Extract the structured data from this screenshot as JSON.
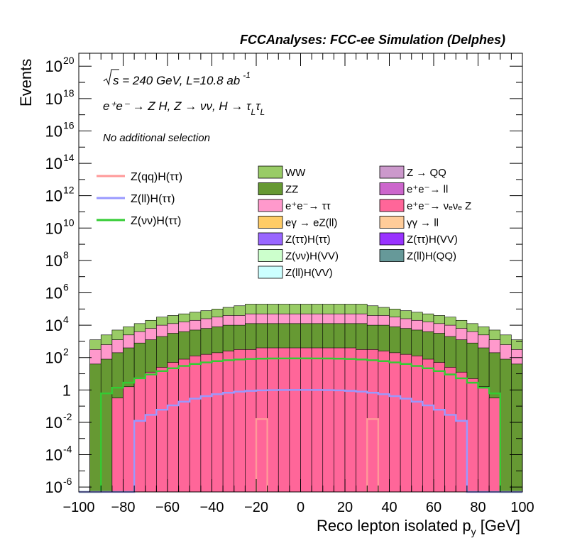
{
  "chart_data": {
    "type": "area",
    "title": "FCCAnalyses: FCC-ee Simulation (Delphes)",
    "xlabel": "Reco lepton isolated p_y [GeV]",
    "ylabel": "Events",
    "xlim": [
      -100,
      100
    ],
    "ylog": true,
    "ylim_exponents": [
      -6.3,
      20.8
    ],
    "x_ticks": [
      -100,
      -80,
      -60,
      -40,
      -20,
      0,
      20,
      40,
      60,
      80,
      100
    ],
    "y_ticks": [
      {
        "exp": -6,
        "label": "10",
        "sup": "-6"
      },
      {
        "exp": -4,
        "label": "10",
        "sup": "-4"
      },
      {
        "exp": -2,
        "label": "10",
        "sup": "-2"
      },
      {
        "exp": 0,
        "label": "1",
        "sup": ""
      },
      {
        "exp": 2,
        "label": "10",
        "sup": "2"
      },
      {
        "exp": 4,
        "label": "10",
        "sup": "4"
      },
      {
        "exp": 6,
        "label": "10",
        "sup": "6"
      },
      {
        "exp": 8,
        "label": "10",
        "sup": "8"
      },
      {
        "exp": 10,
        "label": "10",
        "sup": "10"
      },
      {
        "exp": 12,
        "label": "10",
        "sup": "12"
      },
      {
        "exp": 14,
        "label": "10",
        "sup": "14"
      },
      {
        "exp": 16,
        "label": "10",
        "sup": "16"
      },
      {
        "exp": 18,
        "label": "10",
        "sup": "18"
      },
      {
        "exp": 20,
        "label": "10",
        "sup": "20"
      }
    ],
    "annotations": {
      "line1_a": "s",
      "line1_b": " = 240 GeV, L=10.8 ab",
      "line1_sup": "-1",
      "line2": "e⁺e⁻ → Z H, Z → νν, H → τ",
      "line2_sub1": "L",
      "line2_tau": "τ",
      "line2_sub2": "L",
      "line3": "No additional selection"
    },
    "legend_signal": [
      {
        "name": "Z(qq)H(ττ)",
        "color": "#ff9999"
      },
      {
        "name": "Z(ll)H(ττ)",
        "color": "#9999ff"
      },
      {
        "name": "Z(νν)H(ττ)",
        "color": "#33cc33"
      }
    ],
    "legend_background": [
      {
        "name": "WW",
        "color": "#99cc66"
      },
      {
        "name": "ZZ",
        "color": "#669933"
      },
      {
        "name": "e⁺e⁻→ ττ",
        "color": "#ff99cc"
      },
      {
        "name": "eγ → eZ(ll)",
        "color": "#ffcc66"
      },
      {
        "name": "Z(ττ)H(ττ)",
        "color": "#9966ff"
      },
      {
        "name": "Z(νν)H(VV)",
        "color": "#ccffcc"
      },
      {
        "name": "Z(ll)H(VV)",
        "color": "#ccffff"
      },
      {
        "name": "Z → QQ",
        "color": "#cc99cc"
      },
      {
        "name": "e⁺e⁻→ ll",
        "color": "#cc66cc"
      },
      {
        "name": "e⁺e⁻→ νₑνₑ Z",
        "color": "#ff6699"
      },
      {
        "name": "γγ → ll",
        "color": "#ffcc99"
      },
      {
        "name": "Z(ττ)H(VV)",
        "color": "#9933ff"
      },
      {
        "name": "Z(ll)H(QQ)",
        "color": "#669999"
      }
    ],
    "bin_edges": [
      -100,
      -95,
      -90,
      -85,
      -80,
      -75,
      -70,
      -65,
      -60,
      -55,
      -50,
      -45,
      -40,
      -35,
      -30,
      -25,
      -20,
      -15,
      -10,
      -5,
      0,
      5,
      10,
      15,
      20,
      25,
      30,
      35,
      40,
      45,
      50,
      55,
      60,
      65,
      70,
      75,
      80,
      85,
      90,
      95,
      100
    ],
    "stack_bins_log10": [
      {
        "name": "e⁺e⁻→ νₑνₑ Z",
        "color": "#ff6699",
        "values": [
          -6.3,
          -6.3,
          -6.3,
          -0.5,
          0.2,
          0.7,
          1.1,
          1.4,
          1.7,
          1.9,
          2.1,
          2.2,
          2.3,
          2.4,
          2.5,
          2.5,
          2.6,
          2.6,
          2.6,
          2.6,
          2.6,
          2.6,
          2.6,
          2.6,
          2.6,
          2.5,
          2.5,
          2.4,
          2.3,
          2.2,
          2.1,
          1.9,
          1.7,
          1.4,
          1.1,
          0.7,
          0.2,
          -0.5,
          -6.3,
          -6.3
        ]
      },
      {
        "name": "ZZ",
        "color": "#669933",
        "values": [
          -6.3,
          1.6,
          1.9,
          2.3,
          2.6,
          2.9,
          3.1,
          3.3,
          3.5,
          3.6,
          3.7,
          3.8,
          3.9,
          4.0,
          4.0,
          4.1,
          4.1,
          4.1,
          4.1,
          4.1,
          4.1,
          4.1,
          4.1,
          4.1,
          4.1,
          4.1,
          4.0,
          4.0,
          3.9,
          3.8,
          3.7,
          3.6,
          3.5,
          3.3,
          3.1,
          2.9,
          2.6,
          2.3,
          1.9,
          1.6
        ]
      },
      {
        "name": "e⁺e⁻→ ττ",
        "color": "#ff99cc",
        "values": [
          -6.3,
          2.5,
          2.8,
          3.1,
          3.4,
          3.6,
          3.8,
          4.0,
          4.1,
          4.2,
          4.3,
          4.4,
          4.5,
          4.6,
          4.6,
          4.7,
          4.7,
          4.7,
          4.7,
          4.7,
          4.7,
          4.7,
          4.7,
          4.7,
          4.7,
          4.7,
          4.6,
          4.6,
          4.5,
          4.4,
          4.3,
          4.2,
          4.1,
          4.0,
          3.8,
          3.6,
          3.4,
          3.1,
          2.8,
          2.5
        ]
      },
      {
        "name": "WW",
        "color": "#99cc66",
        "values": [
          -6.3,
          3.1,
          3.4,
          3.7,
          3.9,
          4.1,
          4.3,
          4.5,
          4.6,
          4.7,
          4.8,
          4.9,
          5.0,
          5.1,
          5.2,
          5.3,
          5.3,
          5.3,
          5.3,
          5.3,
          5.3,
          5.3,
          5.3,
          5.3,
          5.3,
          5.3,
          5.2,
          5.1,
          5.0,
          4.9,
          4.8,
          4.7,
          4.6,
          4.5,
          4.3,
          4.1,
          3.9,
          3.7,
          3.4,
          3.1
        ]
      }
    ]
  }
}
